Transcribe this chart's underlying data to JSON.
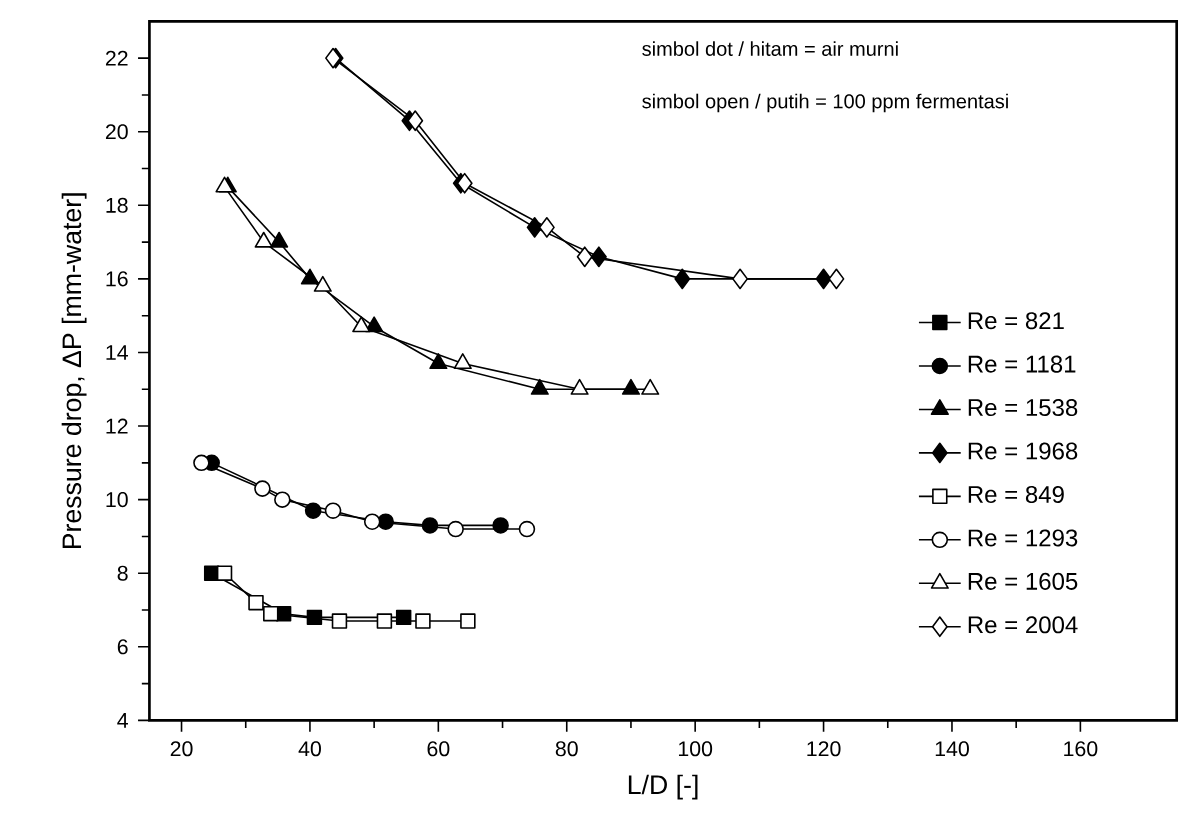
{
  "chart_data": {
    "type": "line",
    "xlabel": "L/D [-]",
    "ylabel": "Pressure drop, ΔP [mm-water]",
    "annotations": [
      "simbol dot / hitam = air murni",
      "simbol open / putih = 100 ppm fermentasi"
    ],
    "xlim": [
      15,
      175
    ],
    "xticks": [
      20,
      40,
      60,
      80,
      100,
      120,
      140,
      160
    ],
    "ylim": [
      4,
      23
    ],
    "yticks": [
      4,
      6,
      8,
      10,
      12,
      14,
      16,
      18,
      20,
      22
    ],
    "grid": false,
    "legend": "right",
    "line_style": "solid",
    "series": [
      {
        "name": "Re = 821",
        "color": "#000000",
        "marker": "square",
        "x": [
          24.7,
          35.9,
          40.7,
          54.6
        ],
        "values": [
          8.0,
          6.9,
          6.8,
          6.8
        ]
      },
      {
        "name": "Re = 1181",
        "color": "#000000",
        "marker": "circle",
        "x": [
          24.7,
          40.5,
          51.8,
          58.7,
          69.7
        ],
        "values": [
          11.0,
          9.7,
          9.4,
          9.3,
          9.3
        ]
      },
      {
        "name": "Re = 1538",
        "color": "#000000",
        "marker": "triangle",
        "x": [
          27.2,
          35.2,
          40.0,
          50.0,
          60.0,
          75.8,
          90.0
        ],
        "values": [
          18.5,
          17.0,
          16.0,
          14.7,
          13.7,
          13.0,
          13.0
        ]
      },
      {
        "name": "Re = 1968",
        "color": "#000000",
        "marker": "diamond",
        "x": [
          44.0,
          55.5,
          63.5,
          75.0,
          85.0,
          98.0,
          120.0
        ],
        "values": [
          22.0,
          20.3,
          18.6,
          17.4,
          16.6,
          16.0,
          16.0
        ]
      },
      {
        "name": "Re = 849",
        "color": "#ffffff",
        "marker": "square",
        "x": [
          26.7,
          31.6,
          33.9,
          44.6,
          51.6,
          57.6,
          64.6
        ],
        "values": [
          8.0,
          7.2,
          6.9,
          6.7,
          6.7,
          6.7,
          6.7
        ]
      },
      {
        "name": "Re = 1293",
        "color": "#ffffff",
        "marker": "circle",
        "x": [
          23.1,
          32.6,
          35.7,
          43.6,
          49.7,
          62.7,
          73.8
        ],
        "values": [
          11.0,
          10.3,
          10.0,
          9.7,
          9.4,
          9.2,
          9.2
        ]
      },
      {
        "name": "Re = 1605",
        "color": "#ffffff",
        "marker": "triangle",
        "x": [
          26.7,
          32.8,
          42.0,
          48.0,
          63.8,
          82.0,
          93.0
        ],
        "values": [
          18.5,
          17.0,
          15.8,
          14.7,
          13.7,
          13.0,
          13.0
        ]
      },
      {
        "name": "Re = 2004",
        "color": "#ffffff",
        "marker": "diamond",
        "x": [
          43.6,
          56.4,
          64.1,
          76.9,
          82.8,
          107.0,
          122.0
        ],
        "values": [
          22.0,
          20.3,
          18.6,
          17.4,
          16.6,
          16.0,
          16.0
        ]
      }
    ]
  }
}
